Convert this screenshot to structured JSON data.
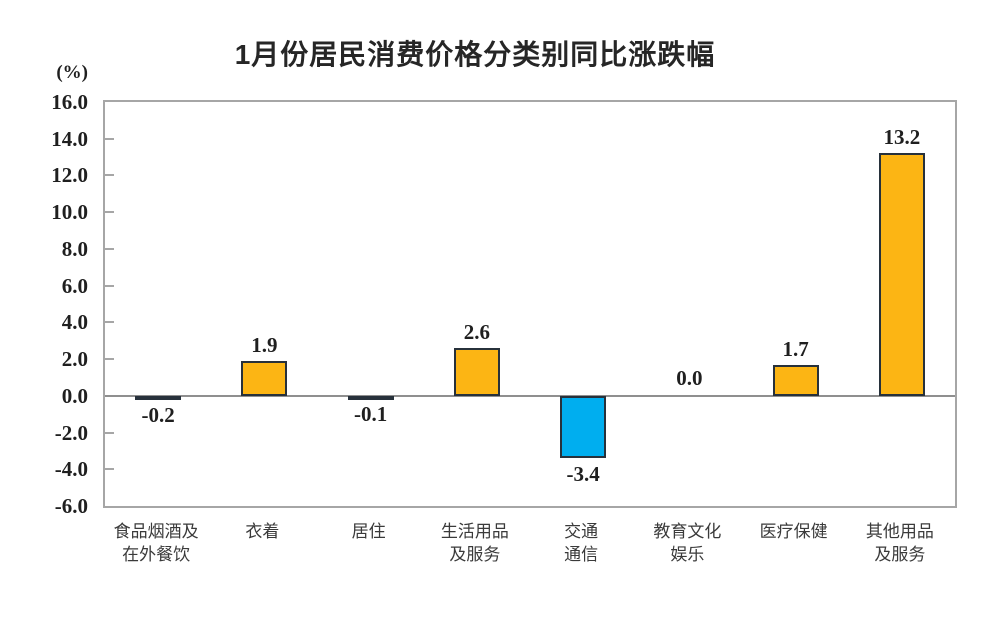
{
  "chart_data": {
    "type": "bar",
    "title": "1月份居民消费价格分类别同比涨跌幅",
    "unit_label": "(%)",
    "categories": [
      "食品烟酒及在外餐饮",
      "衣着",
      "居住",
      "生活用品及服务",
      "交通通信",
      "教育文化娱乐",
      "医疗保健",
      "其他用品及服务"
    ],
    "category_label_lines": [
      [
        "食品烟酒及",
        "在外餐饮"
      ],
      [
        "衣着"
      ],
      [
        "居住"
      ],
      [
        "生活用品",
        "及服务"
      ],
      [
        "交通",
        "通信"
      ],
      [
        "教育文化",
        "娱乐"
      ],
      [
        "医疗保健"
      ],
      [
        "其他用品",
        "及服务"
      ]
    ],
    "values": [
      -0.2,
      1.9,
      -0.1,
      2.6,
      -3.4,
      0.0,
      1.7,
      13.2
    ],
    "value_labels": [
      "-0.2",
      "1.9",
      "-0.1",
      "2.6",
      "-3.4",
      "0.0",
      "1.7",
      "13.2"
    ],
    "ylabel": "(%)",
    "xlabel": "",
    "ylim": [
      -6.0,
      16.0
    ],
    "ytick_step": 2.0,
    "ytick_labels": [
      "16.0",
      "14.0",
      "12.0",
      "10.0",
      "8.0",
      "6.0",
      "4.0",
      "2.0",
      "0.0",
      "-2.0",
      "-4.0",
      "-6.0"
    ],
    "grid": "off",
    "legend": "none",
    "colors": {
      "positive_bar": "#FCB514",
      "negative_bar": "#00AEEF",
      "bar_border": "#27313B",
      "axis_frame": "#A6A6A6",
      "zero_line": "#8F8F8F",
      "number_text": "#1F1F1F",
      "category_text": "#3A3A3A",
      "title_text": "#262626",
      "background": "#FFFFFF"
    }
  }
}
